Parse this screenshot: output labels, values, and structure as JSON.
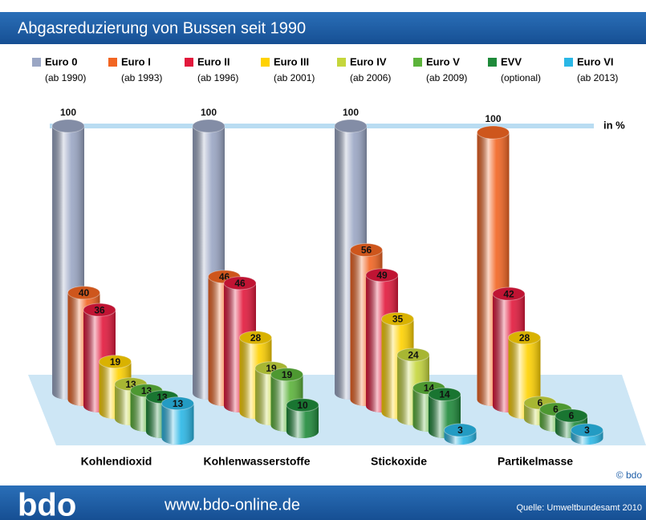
{
  "chart_data": {
    "type": "cylinder_bar",
    "title": "Abgasreduzierung von Bussen seit 1990",
    "unit_label": "in %",
    "reference_line": 100,
    "ylim": [
      0,
      100
    ],
    "categories": [
      "Kohlendioxid",
      "Kohlenwasserstoffe",
      "Stickoxide",
      "Partikelmasse"
    ],
    "series": [
      {
        "name": "Euro 0",
        "period": "(ab 1990)",
        "color": "#9aa6c4",
        "values": [
          100,
          100,
          100,
          null
        ]
      },
      {
        "name": "Euro I",
        "period": "(ab 1993)",
        "color": "#f26522",
        "values": [
          40,
          46,
          56,
          100
        ]
      },
      {
        "name": "Euro II",
        "period": "(ab 1996)",
        "color": "#e2183c",
        "values": [
          36,
          46,
          49,
          42
        ]
      },
      {
        "name": "Euro III",
        "period": "(ab 2001)",
        "color": "#ffd200",
        "values": [
          19,
          28,
          35,
          28
        ]
      },
      {
        "name": "Euro IV",
        "period": "(ab 2006)",
        "color": "#c5d63c",
        "values": [
          13,
          19,
          24,
          6
        ]
      },
      {
        "name": "Euro V",
        "period": "(ab 2009)",
        "color": "#5bb33a",
        "values": [
          13,
          19,
          14,
          6
        ]
      },
      {
        "name": "EVV",
        "period": "(optional)",
        "color": "#1e8a3a",
        "values": [
          13,
          10,
          14,
          6
        ]
      },
      {
        "name": "Euro VI",
        "period": "(ab 2013)",
        "color": "#2ab7e6",
        "values": [
          13,
          null,
          3,
          3
        ]
      }
    ],
    "copyright": "© bdo",
    "footer": {
      "logo": "bdo",
      "url": "www.bdo-online.de",
      "source": "Quelle: Umweltbundesamt 2010"
    }
  }
}
